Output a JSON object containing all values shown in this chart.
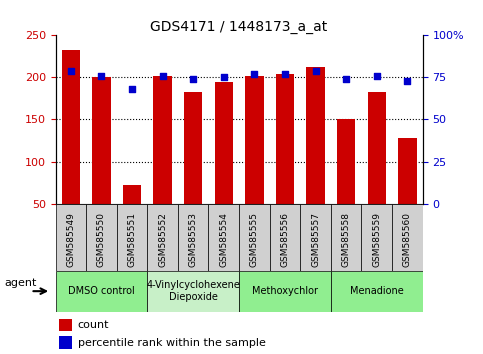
{
  "title": "GDS4171 / 1448173_a_at",
  "samples": [
    "GSM585549",
    "GSM585550",
    "GSM585551",
    "GSM585552",
    "GSM585553",
    "GSM585554",
    "GSM585555",
    "GSM585556",
    "GSM585557",
    "GSM585558",
    "GSM585559",
    "GSM585560"
  ],
  "counts": [
    233,
    200,
    72,
    202,
    183,
    195,
    202,
    204,
    213,
    151,
    183,
    128
  ],
  "percentile_ranks": [
    79,
    76,
    68,
    76,
    74,
    75,
    77,
    77,
    79,
    74,
    76,
    73
  ],
  "bar_color": "#cc0000",
  "dot_color": "#0000cc",
  "ylim_left": [
    50,
    250
  ],
  "ylim_right": [
    0,
    100
  ],
  "yticks_left": [
    50,
    100,
    150,
    200,
    250
  ],
  "ytick_labels_left": [
    "50",
    "100",
    "150",
    "200",
    "250"
  ],
  "yticks_right": [
    0,
    25,
    50,
    75,
    100
  ],
  "ytick_labels_right": [
    "0",
    "25",
    "50",
    "75",
    "100%"
  ],
  "grid_values": [
    100,
    150,
    200
  ],
  "groups": [
    {
      "label": "DMSO control",
      "start": 0,
      "end": 3,
      "color": "#90ee90"
    },
    {
      "label": "4-Vinylcyclohexene\nDiepoxide",
      "start": 3,
      "end": 6,
      "color": "#c8f0c8"
    },
    {
      "label": "Methoxychlor",
      "start": 6,
      "end": 9,
      "color": "#90ee90"
    },
    {
      "label": "Menadione",
      "start": 9,
      "end": 12,
      "color": "#90ee90"
    }
  ],
  "tick_label_color_left": "#cc0000",
  "tick_label_color_right": "#0000cc",
  "plot_bg_color": "#ffffff",
  "sample_cell_color": "#d0d0d0",
  "legend_count_label": "count",
  "legend_pct_label": "percentile rank within the sample"
}
